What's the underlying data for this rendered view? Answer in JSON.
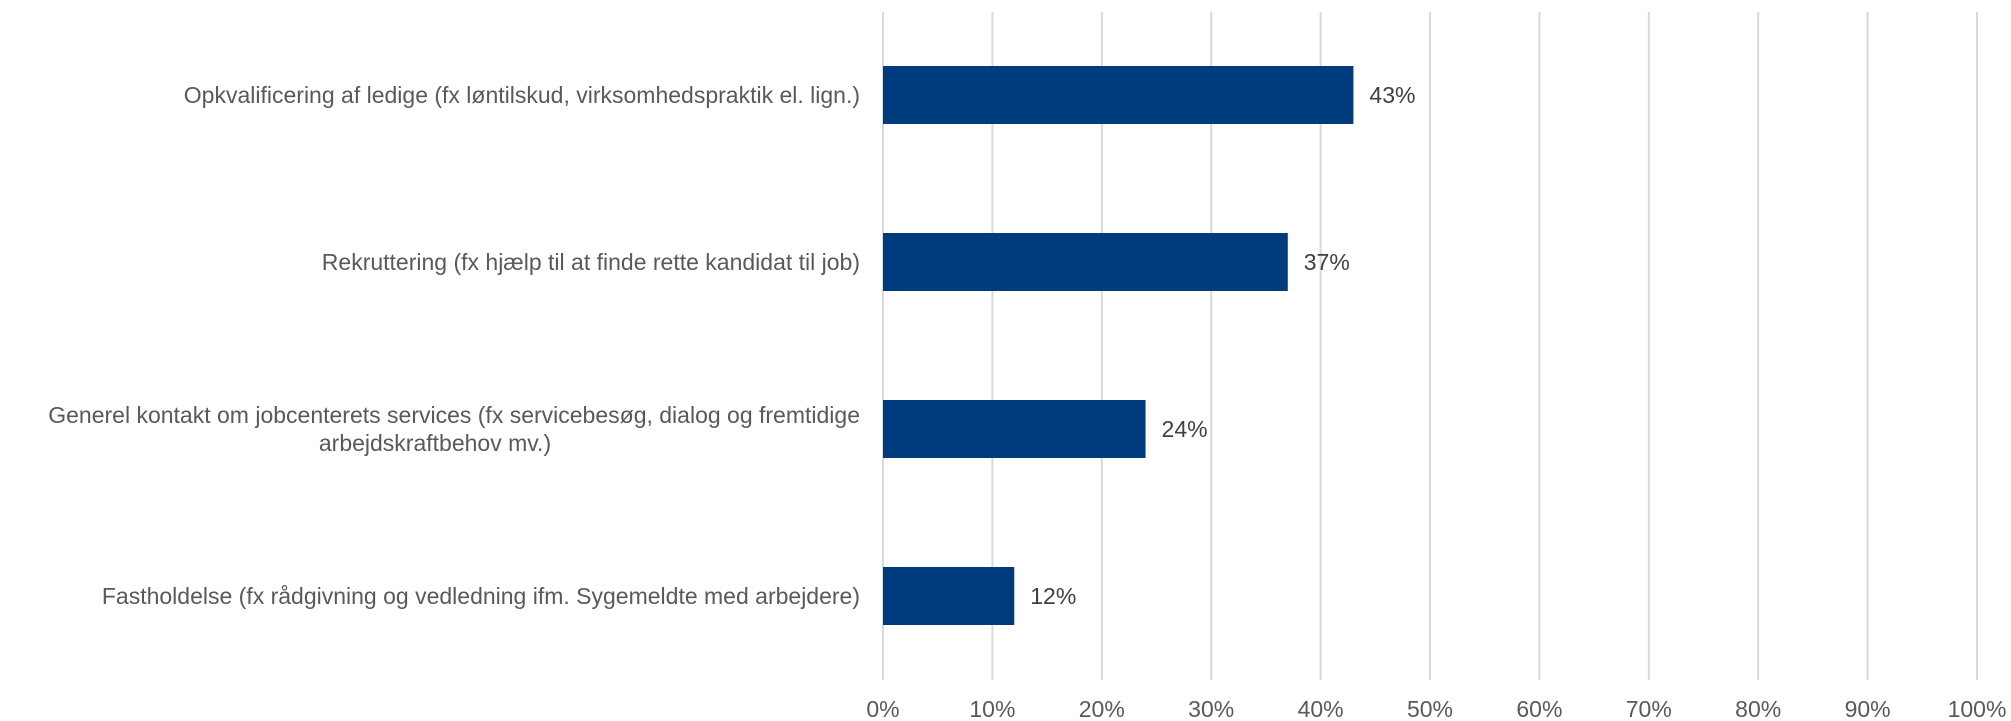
{
  "chart_data": {
    "type": "bar",
    "orientation": "horizontal",
    "categories": [
      [
        "Opkvalificering af ledige (fx løntilskud, virksomhedspraktik el. lign.)"
      ],
      [
        "Rekruttering (fx hjælp til at finde rette kandidat til job)"
      ],
      [
        "Generel kontakt om jobcenterets services (fx servicebesøg, dialog og fremtidige",
        "arbejdskraftbehov mv.)"
      ],
      [
        "Fastholdelse (fx rådgivning og vedledning ifm. Sygemeldte med arbejdere)"
      ]
    ],
    "values": [
      43,
      37,
      24,
      12
    ],
    "value_labels": [
      "43%",
      "37%",
      "24%",
      "12%"
    ],
    "xlim": [
      0,
      100
    ],
    "x_ticks": [
      0,
      10,
      20,
      30,
      40,
      50,
      60,
      70,
      80,
      90,
      100
    ],
    "x_tick_labels": [
      "0%",
      "10%",
      "20%",
      "30%",
      "40%",
      "50%",
      "60%",
      "70%",
      "80%",
      "90%",
      "100%"
    ],
    "bar_color": "#003c7d",
    "grid": true,
    "legend": "none"
  }
}
